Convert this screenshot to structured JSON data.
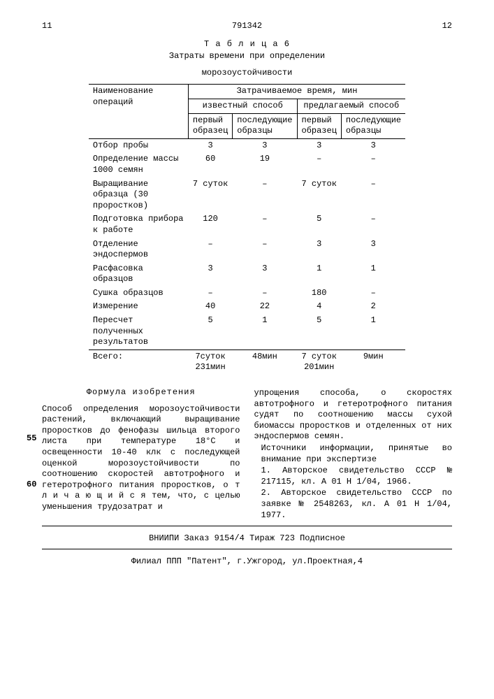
{
  "page_left": "11",
  "docnum": "791342",
  "page_right": "12",
  "table_label": "Т а б л и ц а  6",
  "table_caption1": "Затраты времени при определении",
  "table_caption2": "морозоустойчивости",
  "th_name": "Наименование операций",
  "th_time": "Затрачиваемое время, мин",
  "th_known": "известный способ",
  "th_proposed": "предлагаемый способ",
  "th_first": "первый образец",
  "th_next": "последующие образцы",
  "rows": [
    {
      "op": "Отбор пробы",
      "a": "3",
      "b": "3",
      "c": "3",
      "d": "3"
    },
    {
      "op": "Определение массы 1000 семян",
      "a": "60",
      "b": "19",
      "c": "–",
      "d": "–"
    },
    {
      "op": "Выращивание образца (30 проростков)",
      "a": "7 суток",
      "b": "–",
      "c": "7 суток",
      "d": "–"
    },
    {
      "op": "Подготовка прибора к работе",
      "a": "120",
      "b": "–",
      "c": "5",
      "d": "–"
    },
    {
      "op": "Отделение эндоспермов",
      "a": "–",
      "b": "–",
      "c": "3",
      "d": "3"
    },
    {
      "op": "Расфасовка образцов",
      "a": "3",
      "b": "3",
      "c": "1",
      "d": "1"
    },
    {
      "op": "Сушка образцов",
      "a": "–",
      "b": "–",
      "c": "180",
      "d": "–"
    },
    {
      "op": "Измерение",
      "a": "40",
      "b": "22",
      "c": "4",
      "d": "2"
    },
    {
      "op": "Пересчет полученных результатов",
      "a": "5",
      "b": "1",
      "c": "5",
      "d": "1"
    }
  ],
  "total_label": "Всего:",
  "total_a": "7суток 231мин",
  "total_b": "48мин",
  "total_c": "7 суток 201мин",
  "total_d": "9мин",
  "formula": "Формула изобретения",
  "left_text": "Способ определения морозоустойчивости растений, включающий выращивание проростков до фенофазы шильца второго листа при температуре 18°С и освещенности 10-40 клк с последующей оценкой морозоустойчивости по соотношению скоростей автотрофного и гетеротрофного питания проростков, о т л и ч а ю щ и й с я  тем, что, с целью уменьшения трудозатрат и",
  "right_text1": "упрощения способа, о скоростях автотрофного и гетеротрофного питания судят по соотношению массы сухой биомассы проростков и отделенных от них эндоспермов семян.",
  "right_src": "Источники информации, принятые во внимание при экспертизе",
  "right_ref1": "1. Авторское свидетельство СССР № 217115, кл. A 01 H 1/04, 1966.",
  "right_ref2": "2. Авторское свидетельство СССР по заявке № 2548263, кл. A 01 H 1/04, 1977.",
  "ln55": "55",
  "ln60": "60",
  "foot1": "ВНИИПИ Заказ 9154/4  Тираж 723  Подписное",
  "foot2": "Филиал ППП \"Патент\", г.Ужгород, ул.Проектная,4"
}
